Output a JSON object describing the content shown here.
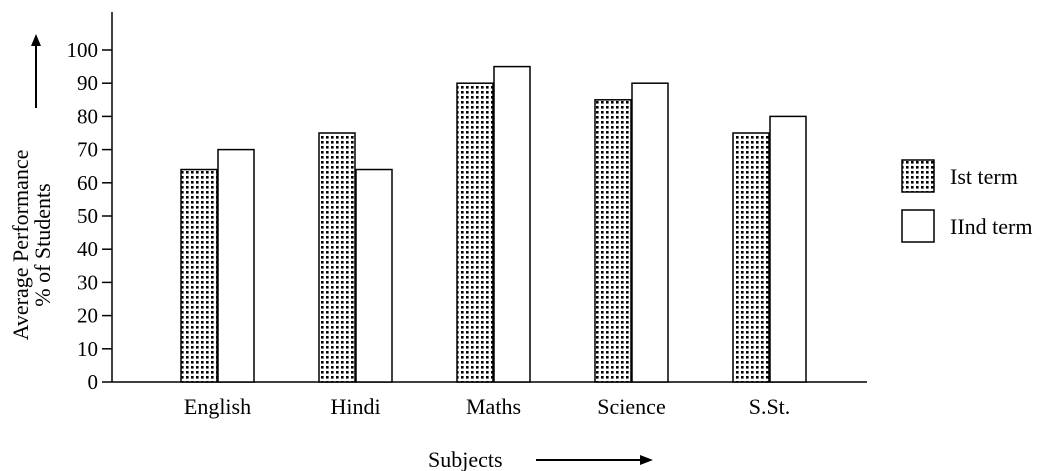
{
  "chart_data": {
    "type": "bar",
    "categories": [
      "English",
      "Hindi",
      "Maths",
      "Science",
      "S.St."
    ],
    "series": [
      {
        "name": "Ist term",
        "values": [
          64,
          75,
          90,
          85,
          75
        ],
        "pattern": "dotted"
      },
      {
        "name": "IInd term",
        "values": [
          70,
          64,
          95,
          90,
          80
        ],
        "pattern": "plain"
      }
    ],
    "ylabel_line1": "Average Performance",
    "ylabel_line2": "% of Students",
    "xlabel": "Subjects",
    "ylim": [
      0,
      100
    ],
    "yticks": [
      0,
      10,
      20,
      30,
      40,
      50,
      60,
      70,
      80,
      90,
      100
    ],
    "legend_position": "right",
    "grid": false,
    "colors": {
      "ink": "#000000",
      "fill": "#ffffff",
      "dot": "#000000"
    }
  }
}
